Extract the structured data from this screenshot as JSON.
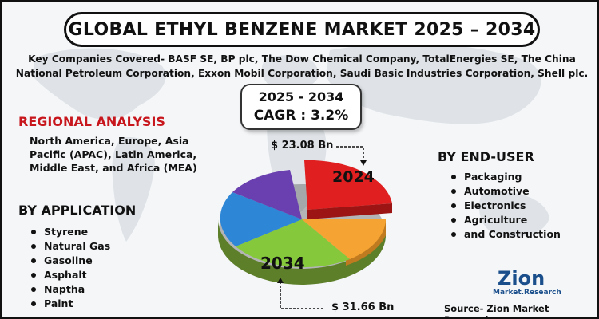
{
  "title": "GLOBAL ETHYL BENZENE MARKET 2025 – 2034",
  "companies": "Key Companies Covered- BASF SE, BP plc, The Dow Chemical Company, TotalEnergies SE, The China National Petroleum Corporation, Exxon Mobil Corporation, Saudi Basic Industries Corporation, Shell plc.",
  "forecast": {
    "period": "2025 - 2034",
    "cagr": "CAGR : 3.2%"
  },
  "regional": {
    "heading": "REGIONAL ANALYSIS",
    "text": "North America, Europe, Asia Pacific (APAC), Latin America, Middle East, and Africa (MEA)"
  },
  "application": {
    "heading": "BY APPLICATION",
    "items": [
      "Styrene",
      "Natural Gas",
      "Gasoline",
      "Asphalt",
      "Naptha",
      "Paint"
    ]
  },
  "end_user": {
    "heading": "BY END-USER",
    "items": [
      "Packaging",
      "Automotive",
      "Electronics",
      "Agriculture",
      "and Construction"
    ]
  },
  "market_values": {
    "start_value": "$ 23.08 Bn",
    "start_label": "2024",
    "end_value": "$ 31.66 Bn",
    "end_label": "2034"
  },
  "pie_colors": {
    "red": "#e02020",
    "orange": "#f5a433",
    "green": "#86c83c",
    "blue": "#2d86d6",
    "purple": "#6a3fb0"
  },
  "logo": {
    "name": "Zion",
    "tagline": "Market.Research"
  },
  "source": "Source- Zion Market Research"
}
